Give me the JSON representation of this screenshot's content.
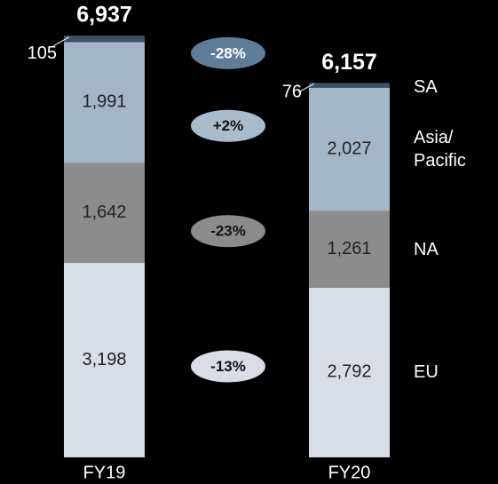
{
  "chart_data": {
    "type": "stacked_bar",
    "categories": [
      "FY19",
      "FY20"
    ],
    "totals": [
      6937,
      6157
    ],
    "total_labels": [
      "6,937",
      "6,157"
    ],
    "series": [
      {
        "name": "EU",
        "color": "#d9dde6",
        "values": [
          3198,
          2792
        ],
        "value_labels": [
          "3,198",
          "2,792"
        ],
        "change": -13,
        "change_label": "-13%",
        "change_color": "#d9dde6"
      },
      {
        "name": "NA",
        "color": "#8c8c8c",
        "values": [
          1642,
          1261
        ],
        "value_labels": [
          "1,642",
          "1,261"
        ],
        "change": -23,
        "change_label": "-23%",
        "change_color": "#8c8c8c"
      },
      {
        "name": "Asia/ Pacific",
        "color": "#a3b6c8",
        "values": [
          1991,
          2027
        ],
        "value_labels": [
          "1,991",
          "2,027"
        ],
        "change": 2,
        "change_label": "+2%",
        "change_color": "#a9bccc"
      },
      {
        "name": "SA",
        "color": "#3d5166",
        "values": [
          105,
          76
        ],
        "value_labels": [
          "105",
          "76"
        ],
        "change": -28,
        "change_label": "-28%",
        "change_color": "#5e7d98"
      }
    ]
  }
}
